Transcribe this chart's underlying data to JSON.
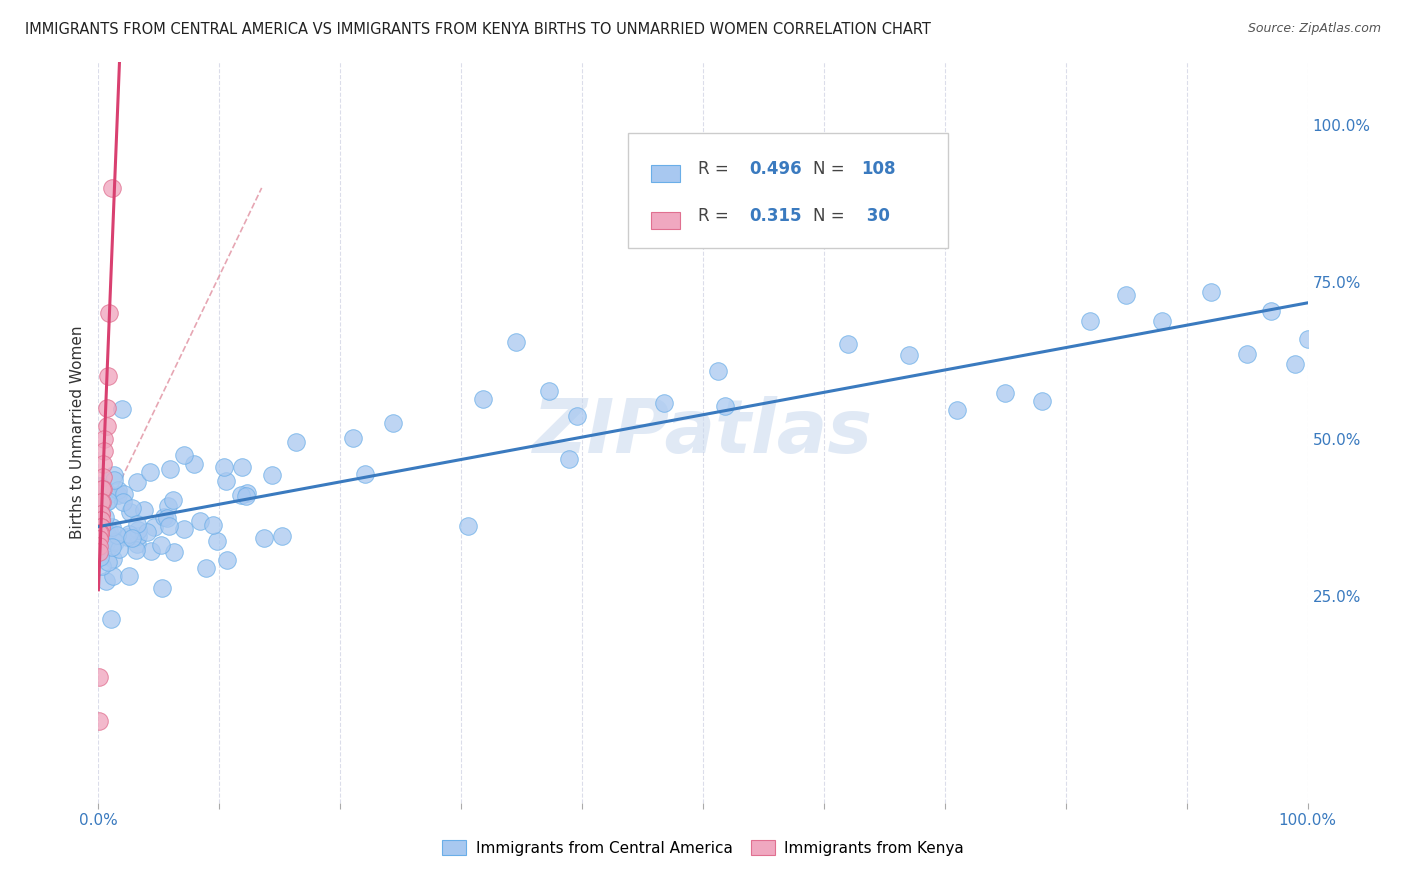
{
  "title": "IMMIGRANTS FROM CENTRAL AMERICA VS IMMIGRANTS FROM KENYA BIRTHS TO UNMARRIED WOMEN CORRELATION CHART",
  "source": "Source: ZipAtlas.com",
  "ylabel": "Births to Unmarried Women",
  "legend_blue_R": "0.496",
  "legend_blue_N": "108",
  "legend_pink_R": "0.315",
  "legend_pink_N": "30",
  "legend_label_blue": "Immigrants from Central America",
  "legend_label_pink": "Immigrants from Kenya",
  "watermark": "ZIPatlas",
  "right_yticks": [
    "100.0%",
    "75.0%",
    "50.0%",
    "25.0%"
  ],
  "right_ytick_vals": [
    1.0,
    0.75,
    0.5,
    0.25
  ],
  "blue_dot_color": "#a8c8f0",
  "blue_dot_edge": "#6aaee8",
  "pink_dot_color": "#f0a8c0",
  "pink_dot_edge": "#e07090",
  "blue_line_color": "#3a7abf",
  "pink_line_color": "#d94070",
  "ref_line_color": "#e090a0",
  "grid_color": "#d8dae8",
  "background_color": "#ffffff",
  "title_fontsize": 10.5,
  "xlim": [
    0.0,
    1.0
  ],
  "ylim": [
    -0.08,
    1.1
  ]
}
